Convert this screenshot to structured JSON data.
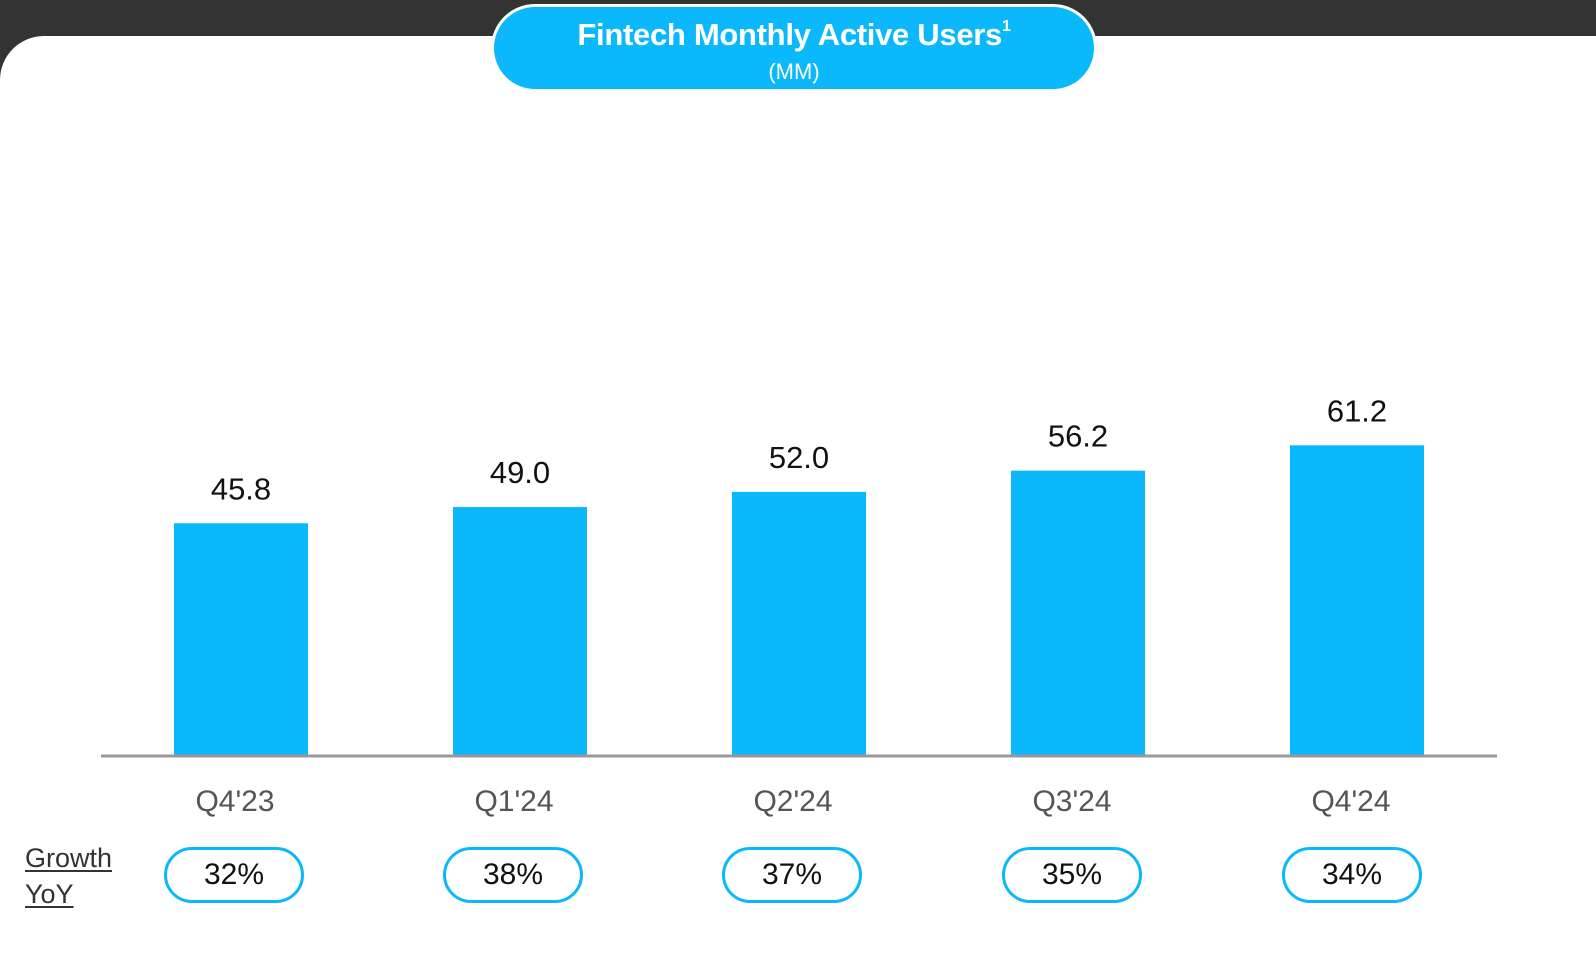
{
  "header": {
    "title": "Fintech Monthly Active Users",
    "title_sup": "1",
    "subtitle": "(MM)"
  },
  "colors": {
    "bar": "#0bb8fb",
    "axis": "#999999",
    "pill_border": "#0bb8fb"
  },
  "chart_data": {
    "type": "bar",
    "title": "Fintech Monthly Active Users",
    "subtitle": "(MM)",
    "categories": [
      "Q4'23",
      "Q1'24",
      "Q2'24",
      "Q3'24",
      "Q4'24"
    ],
    "values": [
      45.8,
      49.0,
      52.0,
      56.2,
      61.2
    ],
    "value_labels": [
      "45.8",
      "49.0",
      "52.0",
      "56.2",
      "61.2"
    ],
    "ylim": [
      0,
      65
    ],
    "grid": false,
    "legend": "none"
  },
  "growth": {
    "label_line1": "Growth",
    "label_line2": "YoY",
    "values": [
      "32%",
      "38%",
      "37%",
      "35%",
      "34%"
    ]
  }
}
